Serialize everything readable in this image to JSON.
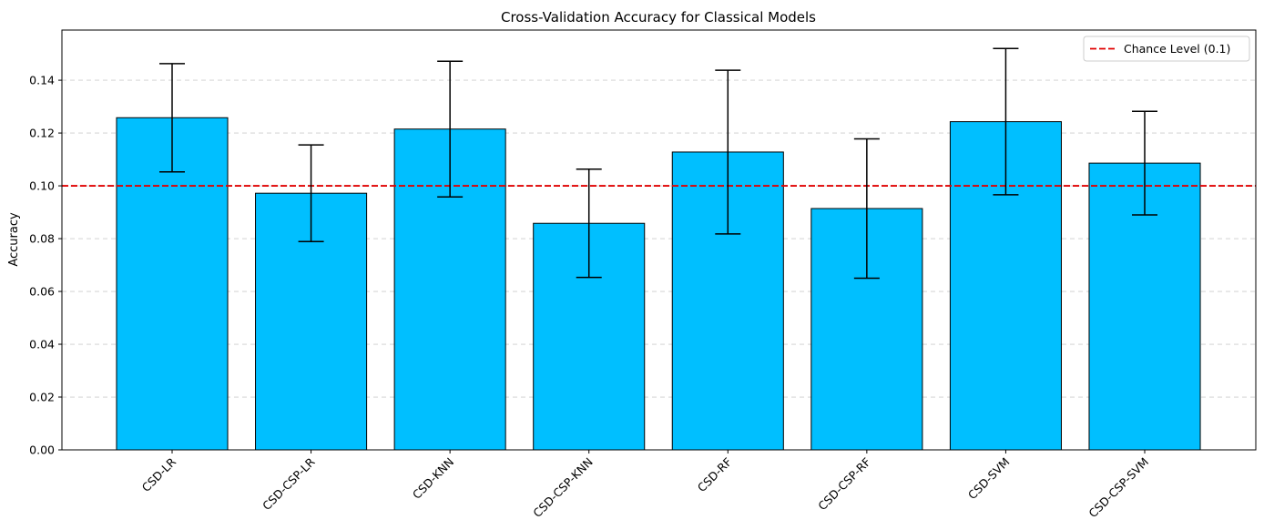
{
  "chart_data": {
    "type": "bar",
    "title": "Cross-Validation Accuracy for Classical Models",
    "xlabel": "",
    "ylabel": "Accuracy",
    "categories": [
      "CSD-LR",
      "CSD-CSP-LR",
      "CSD-KNN",
      "CSD-CSP-KNN",
      "CSD-RF",
      "CSD-CSP-RF",
      "CSD-SVM",
      "CSD-CSP-SVM"
    ],
    "values": [
      0.1258,
      0.0972,
      0.1215,
      0.0858,
      0.1128,
      0.0914,
      0.1243,
      0.1086
    ],
    "errors": [
      0.0205,
      0.0183,
      0.0257,
      0.0205,
      0.031,
      0.0264,
      0.0277,
      0.0196
    ],
    "ylim": [
      0,
      0.159
    ],
    "yticks": [
      0.0,
      0.02,
      0.04,
      0.06,
      0.08,
      0.1,
      0.12,
      0.14
    ],
    "ytick_labels": [
      "0.00",
      "0.02",
      "0.04",
      "0.06",
      "0.08",
      "0.10",
      "0.12",
      "0.14"
    ],
    "grid": "y-dashed",
    "bar_color": "#00bfff",
    "reference_line": {
      "value": 0.1,
      "label": "Chance Level (0.1)",
      "color": "#e00000",
      "style": "dashed"
    },
    "legend": {
      "placement": "top-right",
      "entries": [
        "Chance Level (0.1)"
      ]
    }
  }
}
